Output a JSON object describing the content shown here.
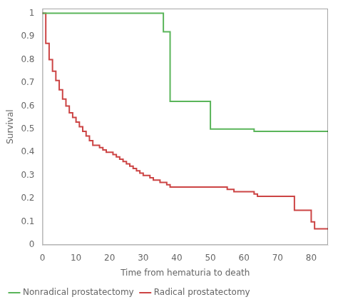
{
  "chart_data": {
    "type": "step",
    "xlabel": "Time from hematuria to death",
    "ylabel": "Survival",
    "xlim": [
      0,
      85
    ],
    "ylim": [
      0,
      1.02
    ],
    "xticks": [
      0,
      10,
      20,
      30,
      40,
      50,
      60,
      70,
      80
    ],
    "yticks": [
      0,
      0.1,
      0.2,
      0.3,
      0.4,
      0.5,
      0.6,
      0.7,
      0.8,
      0.9,
      1
    ],
    "grid": false,
    "legend": "bottom",
    "series": [
      {
        "name": "Nonradical prostatectomy",
        "color": "#5ab55a",
        "x": [
          0,
          19,
          36,
          38,
          50,
          63,
          85
        ],
        "values": [
          1.0,
          1.0,
          0.92,
          0.62,
          0.5,
          0.49,
          0.49
        ]
      },
      {
        "name": "Radical prostatectomy",
        "color": "#cc4444",
        "x": [
          0,
          1,
          2,
          3,
          4,
          5,
          6,
          7,
          8,
          9,
          10,
          11,
          12,
          13,
          14,
          15,
          17,
          18,
          19,
          21,
          22,
          23,
          24,
          25,
          26,
          27,
          28,
          29,
          30,
          32,
          33,
          35,
          37,
          38,
          40,
          55,
          57,
          60,
          63,
          64,
          75,
          76,
          80,
          81,
          85
        ],
        "values": [
          1.0,
          0.87,
          0.8,
          0.75,
          0.71,
          0.67,
          0.63,
          0.6,
          0.57,
          0.55,
          0.53,
          0.51,
          0.49,
          0.47,
          0.45,
          0.43,
          0.42,
          0.41,
          0.4,
          0.39,
          0.38,
          0.37,
          0.36,
          0.35,
          0.34,
          0.33,
          0.32,
          0.31,
          0.3,
          0.29,
          0.28,
          0.27,
          0.26,
          0.25,
          0.25,
          0.24,
          0.23,
          0.23,
          0.22,
          0.21,
          0.15,
          0.15,
          0.1,
          0.07,
          0.07
        ]
      }
    ]
  }
}
